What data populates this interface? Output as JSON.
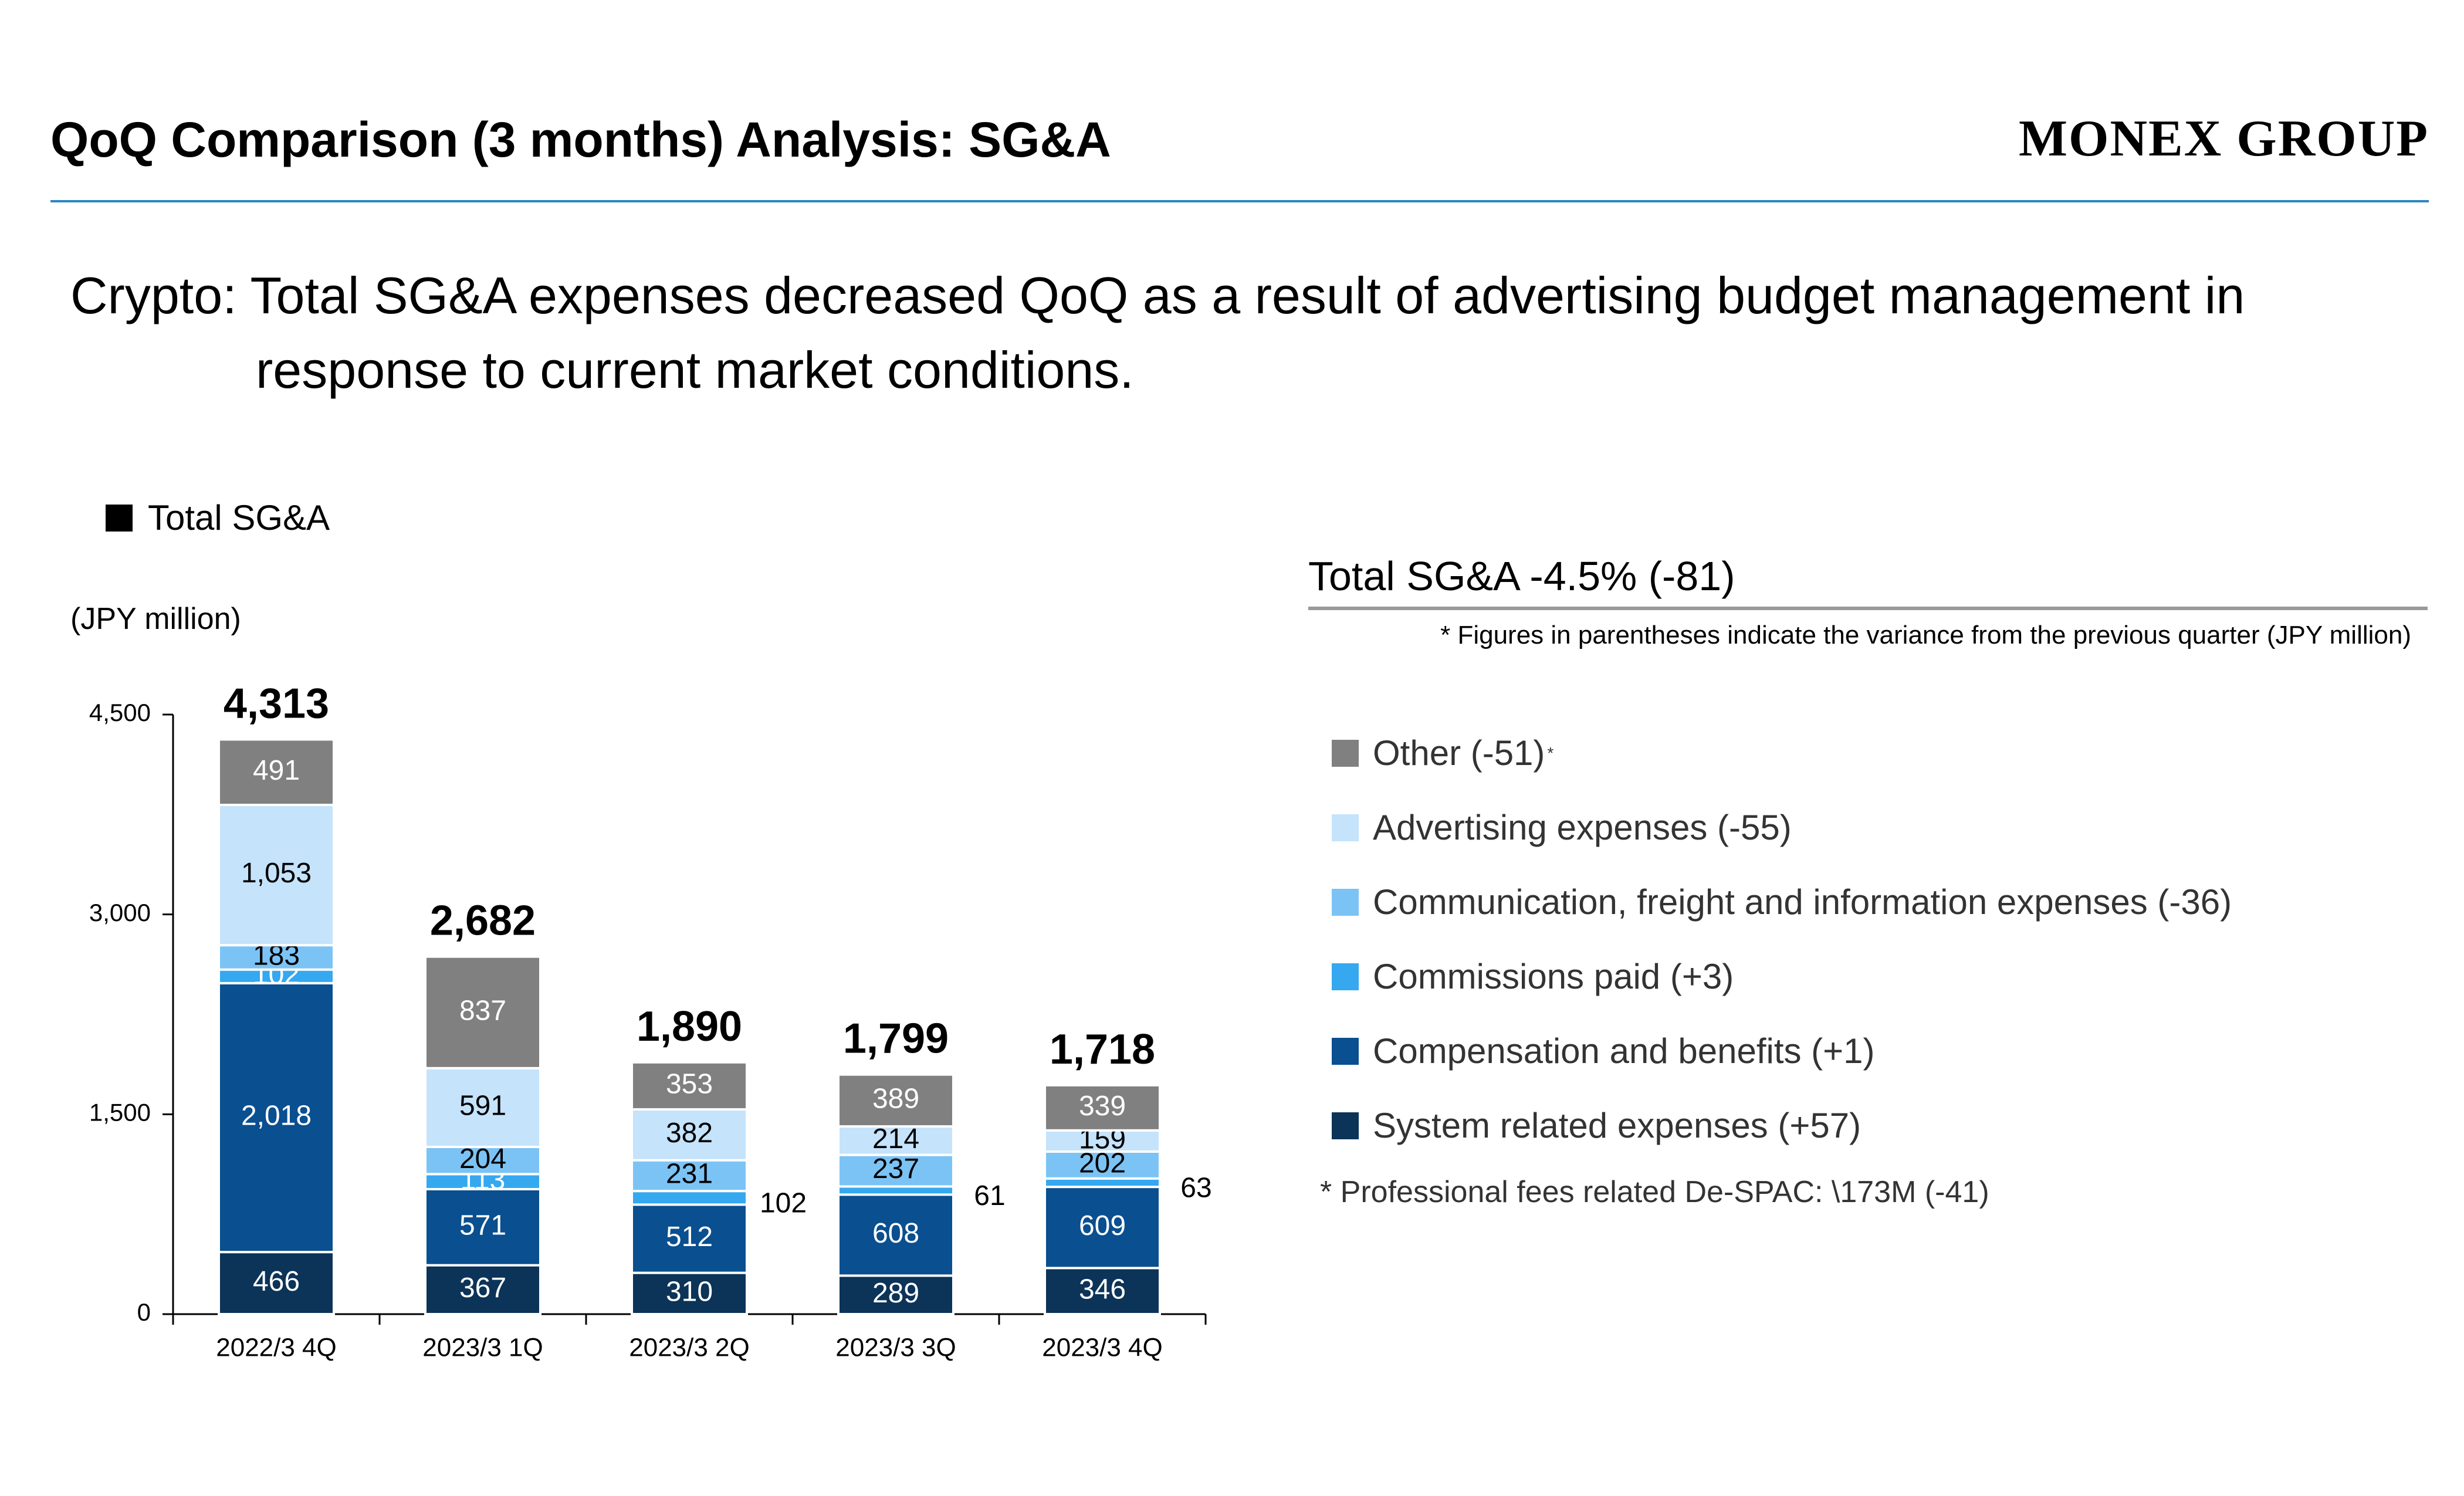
{
  "header": {
    "title": "QoQ Comparison (3 months) Analysis: SG&A",
    "brand": "MONEX GROUP"
  },
  "headline": {
    "line1": "Crypto: Total SG&A expenses decreased QoQ as a result of advertising budget management in",
    "line2": "response to current market conditions."
  },
  "legend_top": {
    "label": "Total SG&A",
    "color": "#000000"
  },
  "unit_label": "(JPY million)",
  "summary": {
    "title": "Total SG&A -4.5% (-81)",
    "note": "* Figures in parentheses indicate the variance from the previous quarter (JPY million)",
    "footnote": "* Professional fees related De-SPAC: \\173M (-41)"
  },
  "legend": [
    {
      "label": "Other (-51)",
      "sup": "*",
      "color": "#808080"
    },
    {
      "label": "Advertising expenses (-55)",
      "sup": "",
      "color": "#c5e3fb"
    },
    {
      "label": "Communication, freight and information expenses (-36)",
      "sup": "",
      "color": "#7cc3f5"
    },
    {
      "label": "Commissions paid (+3)",
      "sup": "",
      "color": "#35a8f0"
    },
    {
      "label": "Compensation and benefits (+1)",
      "sup": "",
      "color": "#0a4f8f"
    },
    {
      "label": "System related expenses (+57)",
      "sup": "",
      "color": "#0c3358"
    }
  ],
  "chart_data": {
    "type": "bar",
    "stacked": true,
    "categories": [
      "2022/3 4Q",
      "2023/3 1Q",
      "2023/3 2Q",
      "2023/3 3Q",
      "2023/3 4Q"
    ],
    "ylim": [
      0,
      4500
    ],
    "yticks": [
      0,
      1500,
      3000,
      4500
    ],
    "ytick_labels": [
      "0",
      "1,500",
      "3,000",
      "4,500"
    ],
    "totals": [
      4313,
      2682,
      1890,
      1799,
      1718
    ],
    "total_labels": [
      "4,313",
      "2,682",
      "1,890",
      "1,799",
      "1,718"
    ],
    "series": [
      {
        "name": "System related expenses",
        "color": "#0c3358",
        "text_color": "#ffffff",
        "values": [
          466,
          367,
          310,
          289,
          346
        ],
        "labels": [
          "466",
          "367",
          "310",
          "289",
          "346"
        ]
      },
      {
        "name": "Compensation and benefits",
        "color": "#0a4f8f",
        "text_color": "#ffffff",
        "values": [
          2018,
          571,
          512,
          608,
          609
        ],
        "labels": [
          "2,018",
          "571",
          "512",
          "608",
          "609"
        ]
      },
      {
        "name": "Commissions paid",
        "color": "#35a8f0",
        "text_color": "#ffffff",
        "values": [
          102,
          113,
          102,
          61,
          63
        ],
        "labels": [
          "102",
          "113",
          "102",
          "61",
          "63"
        ],
        "outside": [
          false,
          false,
          true,
          true,
          true
        ]
      },
      {
        "name": "Communication, freight and information expenses",
        "color": "#7cc3f5",
        "text_color": "#000000",
        "values": [
          183,
          204,
          231,
          237,
          202
        ],
        "labels": [
          "183",
          "204",
          "231",
          "237",
          "202"
        ]
      },
      {
        "name": "Advertising expenses",
        "color": "#c5e3fb",
        "text_color": "#000000",
        "values": [
          1053,
          591,
          382,
          214,
          159
        ],
        "labels": [
          "1,053",
          "591",
          "382",
          "214",
          "159"
        ]
      },
      {
        "name": "Other",
        "color": "#808080",
        "text_color": "#ffffff",
        "values": [
          491,
          837,
          353,
          389,
          339
        ],
        "labels": [
          "491",
          "837",
          "353",
          "389",
          "339"
        ]
      }
    ]
  }
}
